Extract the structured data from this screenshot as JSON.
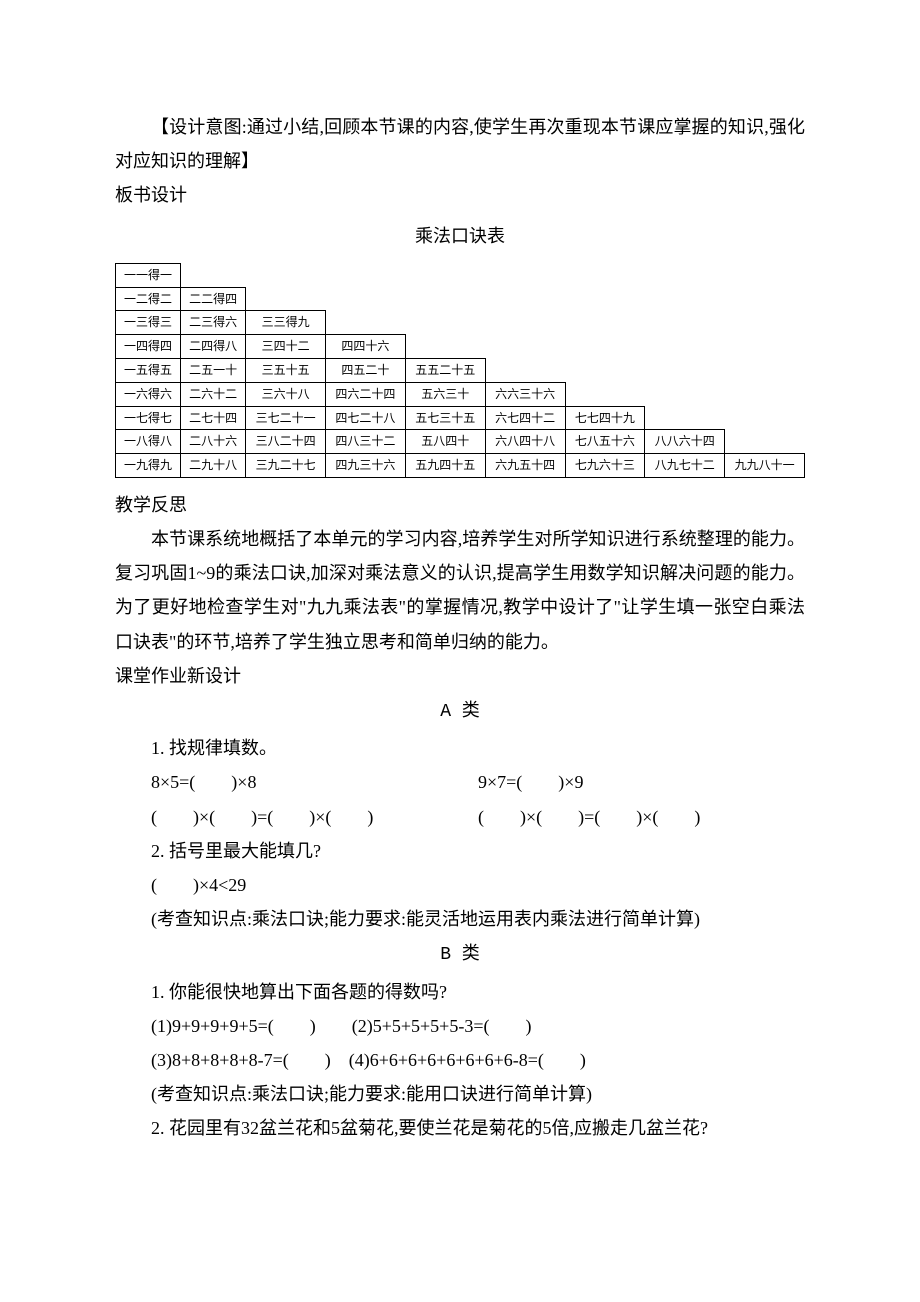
{
  "intro": {
    "p1": "【设计意图:通过小结,回顾本节课的内容,使学生再次重现本节课应掌握的知识,强化对应知识的理解】",
    "board_design_label": "板书设计",
    "table_title": "乘法口诀表"
  },
  "mult_table": {
    "rows": [
      [
        "一一得一"
      ],
      [
        "一二得二",
        "二二得四"
      ],
      [
        "一三得三",
        "二三得六",
        "三三得九"
      ],
      [
        "一四得四",
        "二四得八",
        "三四十二",
        "四四十六"
      ],
      [
        "一五得五",
        "二五一十",
        "三五十五",
        "四五二十",
        "五五二十五"
      ],
      [
        "一六得六",
        "二六十二",
        "三六十八",
        "四六二十四",
        "五六三十",
        "六六三十六"
      ],
      [
        "一七得七",
        "二七十四",
        "三七二十一",
        "四七二十八",
        "五七三十五",
        "六七四十二",
        "七七四十九"
      ],
      [
        "一八得八",
        "二八十六",
        "三八二十四",
        "四八三十二",
        "五八四十",
        "六八四十八",
        "七八五十六",
        "八八六十四"
      ],
      [
        "一九得九",
        "二九十八",
        "三九二十七",
        "四九三十六",
        "五九四十五",
        "六九五十四",
        "七九六十三",
        "八九七十二",
        "九九八十一"
      ]
    ],
    "cols": 9
  },
  "reflection": {
    "label": "教学反思",
    "p1": "本节课系统地概括了本单元的学习内容,培养学生对所学知识进行系统整理的能力。复习巩固1~9的乘法口诀,加深对乘法意义的认识,提高学生用数学知识解决问题的能力。为了更好地检查学生对\"九九乘法表\"的掌握情况,教学中设计了\"让学生填一张空白乘法口诀表\"的环节,培养了学生独立思考和简单归纳的能力。"
  },
  "homework": {
    "label": "课堂作业新设计",
    "catA": "A 类",
    "catB": "B 类",
    "a1_q": "1. 找规律填数。",
    "a1_e1a": "8×5=(　　)×8",
    "a1_e1b": "9×7=(　　)×9",
    "a1_e2a": "(　　)×(　　)=(　　)×(　　)",
    "a1_e2b": "(　　)×(　　)=(　　)×(　　)",
    "a2_q": "2. 括号里最大能填几?",
    "a2_e": "(　　)×4<29",
    "a_note": "(考查知识点:乘法口诀;能力要求:能灵活地运用表内乘法进行简单计算)",
    "b1_q": "1. 你能很快地算出下面各题的得数吗?",
    "b1_e1": "(1)9+9+9+9+5=(　　)　　(2)5+5+5+5+5-3=(　　)",
    "b1_e2": "(3)8+8+8+8+8-7=(　　)　(4)6+6+6+6+6+6+6+6-8=(　　)",
    "b_note": "(考查知识点:乘法口诀;能力要求:能用口诀进行简单计算)",
    "b2_q": "2. 花园里有32盆兰花和5盆菊花,要使兰花是菊花的5倍,应搬走几盆兰花?"
  }
}
